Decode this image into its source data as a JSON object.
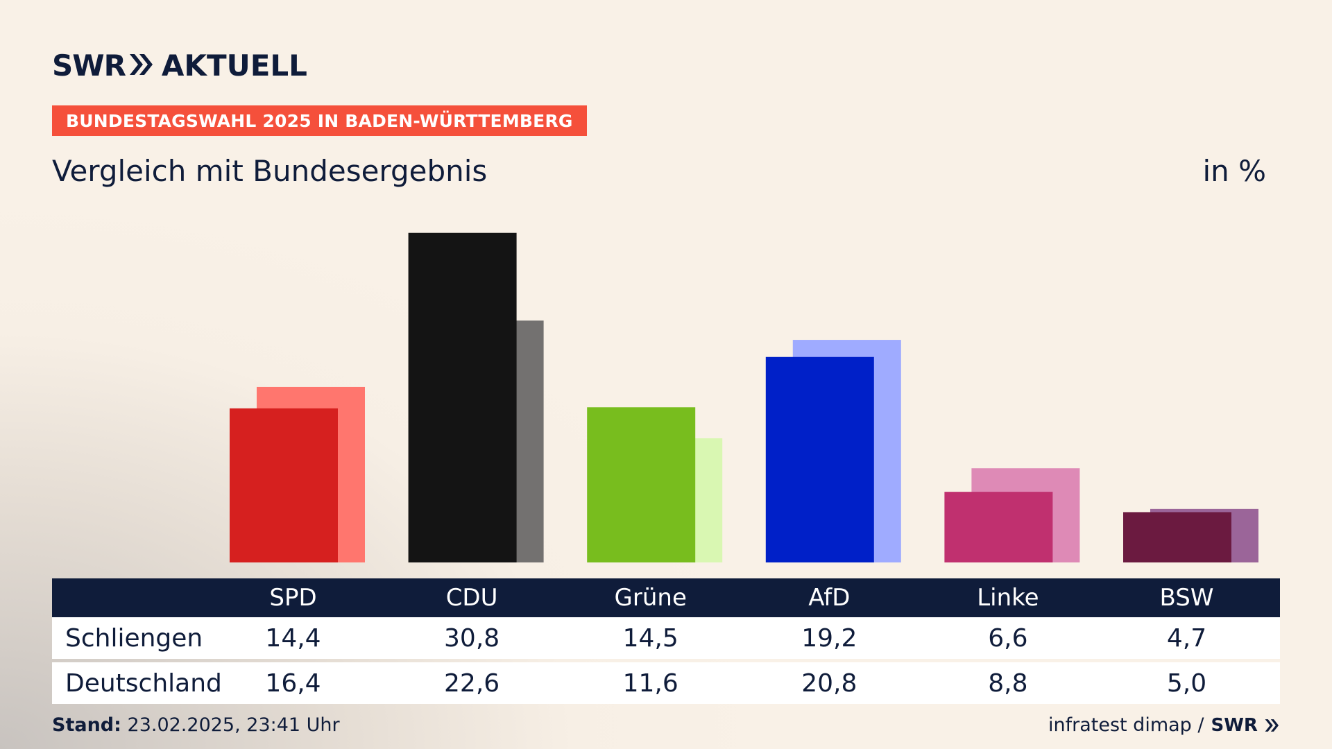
{
  "header": {
    "brand_swr": "SWR",
    "brand_aktuell": "AKTUELL",
    "tag": "BUNDESTAGSWAHL 2025 IN BADEN-WÜRTTEMBERG",
    "subtitle": "Vergleich mit Bundesergebnis",
    "unit": "in %"
  },
  "table": {
    "row_labels": [
      "Schliengen",
      "Deutschland"
    ]
  },
  "footer": {
    "stand_label": "Stand:",
    "stand_value": "23.02.2025, 23:41 Uhr",
    "source": "infratest dimap /",
    "source_brand": "SWR"
  },
  "colors": {
    "dark": "#0f1c3a",
    "tag": "#f5503b"
  },
  "chart_data": {
    "type": "bar",
    "categories": [
      "SPD",
      "CDU",
      "Grüne",
      "AfD",
      "Linke",
      "BSW"
    ],
    "series": [
      {
        "name": "Schliengen",
        "values": [
          14.4,
          30.8,
          14.5,
          19.2,
          6.6,
          4.7
        ]
      },
      {
        "name": "Deutschland",
        "values": [
          16.4,
          22.6,
          11.6,
          20.8,
          8.8,
          5.0
        ]
      }
    ],
    "value_labels": {
      "Schliengen": [
        "14,4",
        "30,8",
        "14,5",
        "19,2",
        "6,6",
        "4,7"
      ],
      "Deutschland": [
        "16,4",
        "22,6",
        "11,6",
        "20,8",
        "8,8",
        "5,0"
      ]
    },
    "colors_primary": [
      "#d6201f",
      "#141414",
      "#78bd1e",
      "#0020c8",
      "#c0306f",
      "#6b1a40"
    ],
    "colors_secondary": [
      "#ff766e",
      "#737170",
      "#d9f7b2",
      "#9fabff",
      "#de8ab6",
      "#9b6599"
    ],
    "ylabel": "in %",
    "grid": false
  }
}
